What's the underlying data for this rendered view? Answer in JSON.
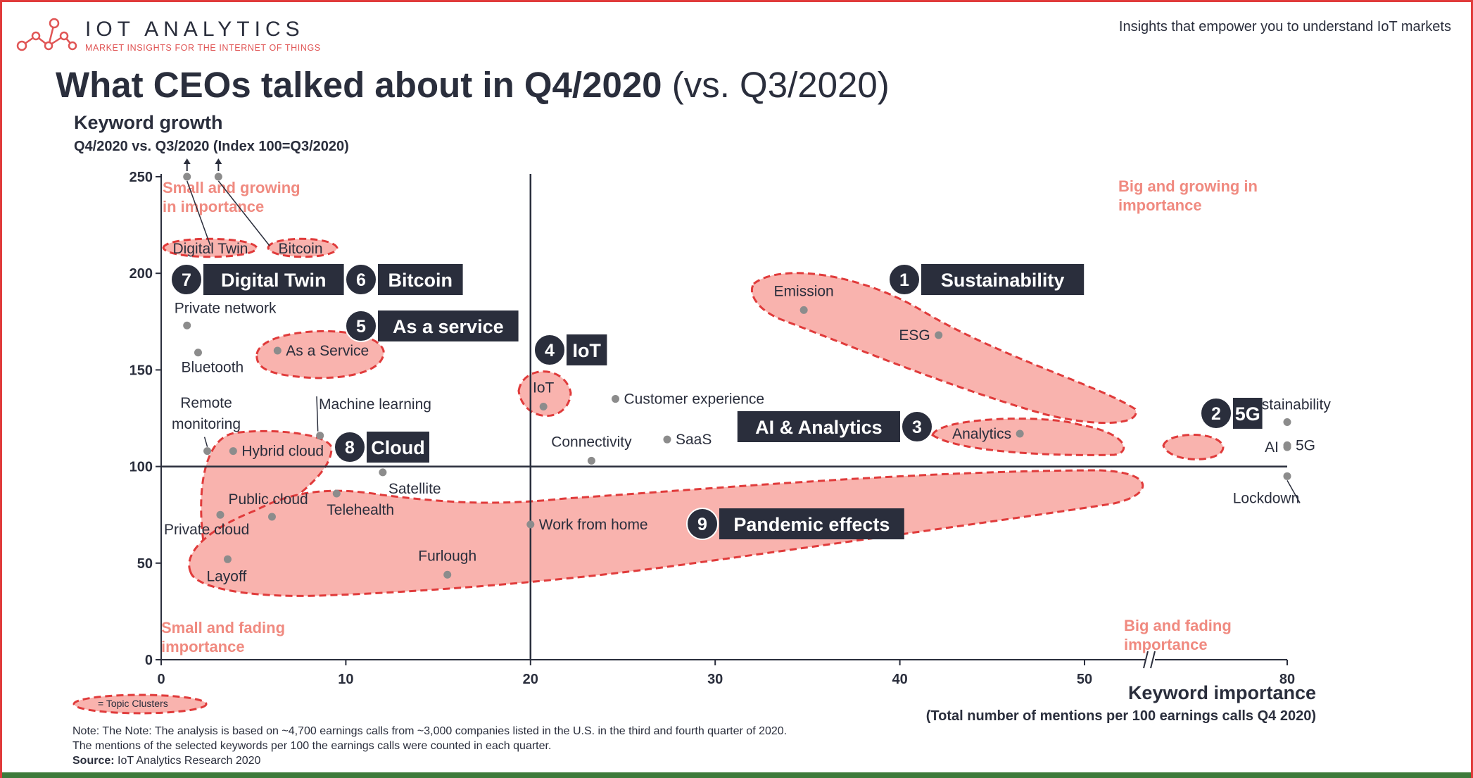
{
  "header": {
    "brand_name": "IOT ANALYTICS",
    "brand_tagline": "MARKET INSIGHTS FOR THE INTERNET OF THINGS",
    "slogan": "Insights that empower you to understand IoT markets",
    "logo_icon": "network-nodes-icon"
  },
  "chart_data": {
    "type": "scatter",
    "title": "What CEOs talked about in Q4/2020",
    "title_suffix": "(vs. Q3/2020)",
    "ylabel": "Keyword growth",
    "ylabel_sub": "Q4/2020 vs. Q3/2020 (Index 100=Q3/2020)",
    "xlabel": "Keyword importance",
    "xlabel_sub": "(Total number of mentions per 100 earnings calls Q4 2020)",
    "xlim": [
      0,
      80
    ],
    "ylim": [
      0,
      250
    ],
    "x_axis_break": "between 50 and 80",
    "x_ticks": [
      "0",
      "10",
      "20",
      "30",
      "40",
      "50",
      "80"
    ],
    "y_ticks": [
      "0",
      "50",
      "100",
      "150",
      "200",
      "250"
    ],
    "reference_lines": {
      "x": 20,
      "y": 100
    },
    "quadrant_labels": {
      "top_left": "Small and growing in importance",
      "top_right": "Big and growing in importance",
      "bottom_left": "Small and fading importance",
      "bottom_right": "Big and fading importance"
    },
    "points": [
      {
        "label": "Digital Twin",
        "x": 1.4,
        "y": 250,
        "off_scale": true
      },
      {
        "label": "Bitcoin",
        "x": 3.1,
        "y": 250,
        "off_scale": true
      },
      {
        "label": "Private network",
        "x": 1.4,
        "y": 173
      },
      {
        "label": "Bluetooth",
        "x": 2.0,
        "y": 159
      },
      {
        "label": "As a Service",
        "x": 6.3,
        "y": 160
      },
      {
        "label": "Remote monitoring",
        "x": 2.5,
        "y": 108
      },
      {
        "label": "Hybrid cloud",
        "x": 3.9,
        "y": 108
      },
      {
        "label": "Machine learning",
        "x": 8.6,
        "y": 116
      },
      {
        "label": "Satellite",
        "x": 12.0,
        "y": 97
      },
      {
        "label": "Telehealth",
        "x": 9.5,
        "y": 86
      },
      {
        "label": "Public cloud",
        "x": 6.0,
        "y": 74
      },
      {
        "label": "Private cloud",
        "x": 3.2,
        "y": 75
      },
      {
        "label": "Layoff",
        "x": 3.6,
        "y": 52
      },
      {
        "label": "Furlough",
        "x": 15.5,
        "y": 44
      },
      {
        "label": "Work from home",
        "x": 20.0,
        "y": 70
      },
      {
        "label": "IoT",
        "x": 20.7,
        "y": 131
      },
      {
        "label": "Customer experience",
        "x": 24.6,
        "y": 135
      },
      {
        "label": "Connectivity",
        "x": 23.3,
        "y": 103
      },
      {
        "label": "SaaS",
        "x": 27.4,
        "y": 114
      },
      {
        "label": "Emission",
        "x": 34.8,
        "y": 181
      },
      {
        "label": "ESG",
        "x": 42.1,
        "y": 168
      },
      {
        "label": "Sustainability",
        "x": 51.8,
        "y": 123
      },
      {
        "label": "Analytics",
        "x": 46.5,
        "y": 117
      },
      {
        "label": "AI",
        "x": 51.0,
        "y": 110
      },
      {
        "label": "5G",
        "x": 55.1,
        "y": 111
      },
      {
        "label": "Lockdown",
        "x": 50.5,
        "y": 95
      }
    ],
    "clusters": [
      {
        "number": "1",
        "name": "Sustainability"
      },
      {
        "number": "2",
        "name": "5G"
      },
      {
        "number": "3",
        "name": "AI & Analytics"
      },
      {
        "number": "4",
        "name": "IoT"
      },
      {
        "number": "5",
        "name": "As a service"
      },
      {
        "number": "6",
        "name": "Bitcoin"
      },
      {
        "number": "7",
        "name": "Digital Twin"
      },
      {
        "number": "8",
        "name": "Cloud"
      },
      {
        "number": "9",
        "name": "Pandemic effects"
      }
    ],
    "legend": "= Topic Clusters",
    "colors": {
      "cluster_fill": "#f9b3ae",
      "cluster_stroke": "#e03b3b",
      "point": "#8c8c8c",
      "badge": "#2a2e3c",
      "quadrant_text": "#f08a80"
    }
  },
  "footer": {
    "note_line1": "Note: The Note: The analysis is based on ~4,700 earnings calls from ~3,000 companies listed in the U.S. in the third and fourth quarter of 2020.",
    "note_line2": "The mentions of the selected keywords per 100 the earnings calls were counted in each quarter.",
    "source_label": "Source:",
    "source_text": "IoT Analytics Research 2020"
  }
}
